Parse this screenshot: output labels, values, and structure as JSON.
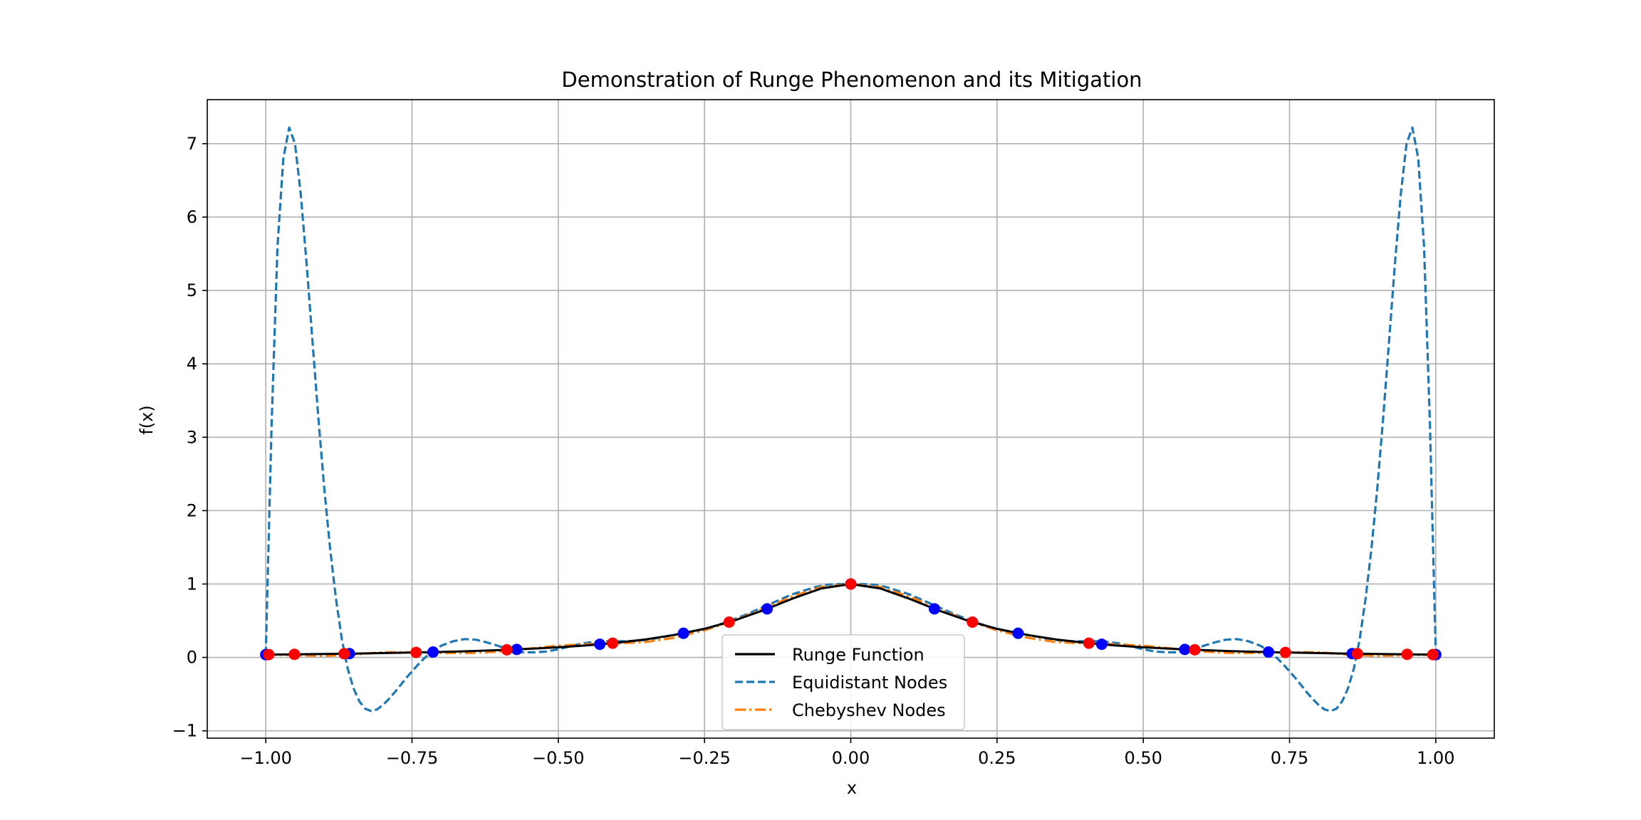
{
  "chart_data": {
    "type": "line",
    "title": "Demonstration of Runge Phenomenon and its Mitigation",
    "xlabel": "x",
    "ylabel": "f(x)",
    "xlim": [
      -1.1,
      1.1
    ],
    "ylim": [
      -1.1,
      7.6
    ],
    "grid": true,
    "legend_position": "bottom-center",
    "x_ticks": [
      -1.0,
      -0.75,
      -0.5,
      -0.25,
      0.0,
      0.25,
      0.5,
      0.75,
      1.0
    ],
    "x_tick_labels": [
      "−1.00",
      "−0.75",
      "−0.50",
      "−0.25",
      "0.00",
      "0.25",
      "0.50",
      "0.75",
      "1.00"
    ],
    "y_ticks": [
      -1,
      0,
      1,
      2,
      3,
      4,
      5,
      6,
      7
    ],
    "y_tick_labels": [
      "−1",
      "0",
      "1",
      "2",
      "3",
      "4",
      "5",
      "6",
      "7"
    ],
    "series": [
      {
        "name": "Runge Function",
        "color": "#000000",
        "style": "solid",
        "x": [
          -1.0,
          -0.95,
          -0.9,
          -0.85,
          -0.8,
          -0.75,
          -0.7,
          -0.65,
          -0.6,
          -0.55,
          -0.5,
          -0.45,
          -0.4,
          -0.35,
          -0.3,
          -0.25,
          -0.2,
          -0.15,
          -0.1,
          -0.05,
          0.0,
          0.05,
          0.1,
          0.15,
          0.2,
          0.25,
          0.3,
          0.35,
          0.4,
          0.45,
          0.5,
          0.55,
          0.6,
          0.65,
          0.7,
          0.75,
          0.8,
          0.85,
          0.9,
          0.95,
          1.0
        ],
        "y": [
          0.038,
          0.042,
          0.047,
          0.052,
          0.059,
          0.066,
          0.075,
          0.086,
          0.1,
          0.117,
          0.138,
          0.165,
          0.2,
          0.246,
          0.308,
          0.39,
          0.5,
          0.64,
          0.8,
          0.941,
          1.0,
          0.941,
          0.8,
          0.64,
          0.5,
          0.39,
          0.308,
          0.246,
          0.2,
          0.165,
          0.138,
          0.117,
          0.1,
          0.086,
          0.075,
          0.066,
          0.059,
          0.052,
          0.047,
          0.042,
          0.038
        ]
      },
      {
        "name": "Equidistant Nodes",
        "color": "#1f77b4",
        "style": "dashed",
        "x": [
          -1.0,
          -0.99,
          -0.98,
          -0.97,
          -0.96,
          -0.95,
          -0.94,
          -0.93,
          -0.92,
          -0.91,
          -0.9,
          -0.89,
          -0.88,
          -0.87,
          -0.86,
          -0.85,
          -0.84,
          -0.83,
          -0.82,
          -0.81,
          -0.8,
          -0.79,
          -0.78,
          -0.77,
          -0.76,
          -0.75,
          -0.74,
          -0.73,
          -0.72,
          -0.71,
          -0.7,
          -0.68,
          -0.66,
          -0.64,
          -0.62,
          -0.6,
          -0.58,
          -0.56,
          -0.54,
          -0.52,
          -0.5,
          -0.48,
          -0.46,
          -0.44,
          -0.42,
          -0.4,
          -0.38,
          -0.36,
          -0.34,
          -0.32,
          -0.3,
          -0.28,
          -0.26,
          -0.24,
          -0.22,
          -0.2,
          -0.18,
          -0.16,
          -0.14,
          -0.12,
          -0.1,
          -0.08,
          -0.06,
          -0.04,
          -0.02,
          0.0,
          0.02,
          0.04,
          0.06,
          0.08,
          0.1,
          0.12,
          0.14,
          0.16,
          0.18,
          0.2,
          0.22,
          0.24,
          0.26,
          0.28,
          0.3,
          0.32,
          0.34,
          0.36,
          0.38,
          0.4,
          0.42,
          0.44,
          0.46,
          0.48,
          0.5,
          0.52,
          0.54,
          0.56,
          0.58,
          0.6,
          0.62,
          0.64,
          0.66,
          0.68,
          0.7,
          0.71,
          0.72,
          0.73,
          0.74,
          0.75,
          0.76,
          0.77,
          0.78,
          0.79,
          0.8,
          0.81,
          0.82,
          0.83,
          0.84,
          0.85,
          0.86,
          0.87,
          0.88,
          0.89,
          0.9,
          0.91,
          0.92,
          0.93,
          0.94,
          0.95,
          0.96,
          0.97,
          0.98,
          0.99,
          1.0
        ],
        "y": [
          0.038,
          3.2,
          5.6,
          6.8,
          7.22,
          7.0,
          6.3,
          5.35,
          4.3,
          3.25,
          2.3,
          1.48,
          0.8,
          0.25,
          -0.15,
          -0.42,
          -0.6,
          -0.7,
          -0.73,
          -0.71,
          -0.65,
          -0.57,
          -0.48,
          -0.38,
          -0.28,
          -0.19,
          -0.1,
          -0.02,
          0.05,
          0.11,
          0.16,
          0.22,
          0.25,
          0.24,
          0.2,
          0.15,
          0.1,
          0.07,
          0.07,
          0.08,
          0.11,
          0.15,
          0.19,
          0.21,
          0.22,
          0.22,
          0.22,
          0.23,
          0.25,
          0.28,
          0.31,
          0.34,
          0.37,
          0.41,
          0.46,
          0.52,
          0.58,
          0.65,
          0.72,
          0.79,
          0.86,
          0.91,
          0.96,
          0.99,
          1.0,
          1.0,
          1.0,
          0.99,
          0.96,
          0.91,
          0.86,
          0.79,
          0.72,
          0.65,
          0.58,
          0.52,
          0.46,
          0.41,
          0.37,
          0.34,
          0.31,
          0.28,
          0.25,
          0.23,
          0.22,
          0.22,
          0.22,
          0.21,
          0.19,
          0.15,
          0.11,
          0.08,
          0.07,
          0.07,
          0.1,
          0.15,
          0.2,
          0.24,
          0.25,
          0.22,
          0.16,
          0.11,
          0.05,
          -0.02,
          -0.1,
          -0.19,
          -0.28,
          -0.38,
          -0.48,
          -0.57,
          -0.65,
          -0.71,
          -0.73,
          -0.7,
          -0.6,
          -0.42,
          -0.15,
          0.25,
          0.8,
          1.48,
          2.3,
          3.25,
          4.3,
          5.35,
          6.3,
          7.0,
          7.22,
          6.8,
          5.6,
          3.2,
          0.038
        ]
      },
      {
        "name": "Chebyshev Nodes",
        "color": "#ff7f0e",
        "style": "dashdot",
        "x": [
          -1.0,
          -0.95,
          -0.9,
          -0.85,
          -0.8,
          -0.75,
          -0.7,
          -0.65,
          -0.6,
          -0.55,
          -0.5,
          -0.45,
          -0.4,
          -0.35,
          -0.3,
          -0.25,
          -0.2,
          -0.15,
          -0.1,
          -0.05,
          0.0,
          0.05,
          0.1,
          0.15,
          0.2,
          0.25,
          0.3,
          0.35,
          0.4,
          0.45,
          0.5,
          0.55,
          0.6,
          0.65,
          0.7,
          0.75,
          0.8,
          0.85,
          0.9,
          0.95,
          1.0
        ],
        "y": [
          0.04,
          0.03,
          0.02,
          0.04,
          0.07,
          0.07,
          0.06,
          0.06,
          0.08,
          0.12,
          0.16,
          0.18,
          0.19,
          0.21,
          0.27,
          0.37,
          0.5,
          0.66,
          0.83,
          0.96,
          1.0,
          0.96,
          0.83,
          0.66,
          0.5,
          0.37,
          0.27,
          0.21,
          0.19,
          0.18,
          0.16,
          0.12,
          0.08,
          0.06,
          0.06,
          0.07,
          0.07,
          0.04,
          0.02,
          0.03,
          0.04
        ]
      }
    ],
    "node_markers": [
      {
        "name": "Equidistant Nodes points",
        "color": "#0000ff",
        "x": [
          -1.0,
          -0.857,
          -0.714,
          -0.571,
          -0.429,
          -0.286,
          -0.143,
          0.0,
          0.143,
          0.286,
          0.429,
          0.571,
          0.714,
          0.857,
          1.0
        ],
        "y": [
          0.038,
          0.052,
          0.073,
          0.109,
          0.179,
          0.329,
          0.662,
          1.0,
          0.662,
          0.329,
          0.179,
          0.109,
          0.073,
          0.052,
          0.038
        ]
      },
      {
        "name": "Chebyshev Nodes points",
        "color": "#ff0000",
        "x": [
          -0.995,
          -0.951,
          -0.866,
          -0.743,
          -0.588,
          -0.407,
          -0.208,
          0.0,
          0.208,
          0.407,
          0.588,
          0.743,
          0.866,
          0.951,
          0.995
        ],
        "y": [
          0.039,
          0.042,
          0.051,
          0.068,
          0.104,
          0.194,
          0.481,
          1.0,
          0.481,
          0.194,
          0.104,
          0.068,
          0.051,
          0.042,
          0.039
        ]
      }
    ]
  }
}
